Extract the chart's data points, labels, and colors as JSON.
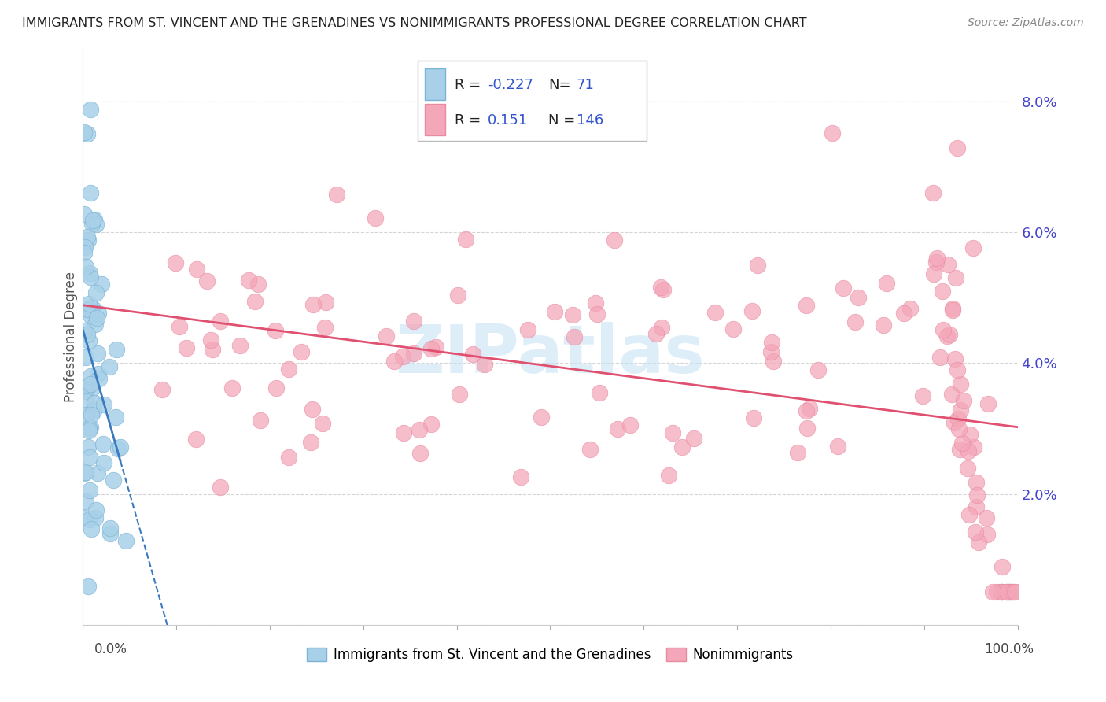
{
  "title": "IMMIGRANTS FROM ST. VINCENT AND THE GRENADINES VS NONIMMIGRANTS PROFESSIONAL DEGREE CORRELATION CHART",
  "source": "Source: ZipAtlas.com",
  "ylabel": "Professional Degree",
  "blue_R": -0.227,
  "blue_N": 71,
  "pink_R": 0.151,
  "pink_N": 146,
  "blue_color": "#a8d0e8",
  "pink_color": "#f4a7b9",
  "blue_edge_color": "#7ab3d4",
  "pink_edge_color": "#e88aa0",
  "blue_line_color": "#3a7abf",
  "pink_line_color": "#e05070",
  "watermark_color": "#c8e4f5",
  "grid_color": "#d5d5d5",
  "ytick_color": "#4444cc",
  "title_color": "#222222",
  "source_color": "#888888",
  "x_range": [
    0,
    1.0
  ],
  "y_range": [
    0,
    0.088
  ],
  "y_ticks": [
    0.0,
    0.02,
    0.04,
    0.06,
    0.08
  ],
  "y_tick_labels": [
    "",
    "2.0%",
    "4.0%",
    "6.0%",
    "8.0%"
  ]
}
